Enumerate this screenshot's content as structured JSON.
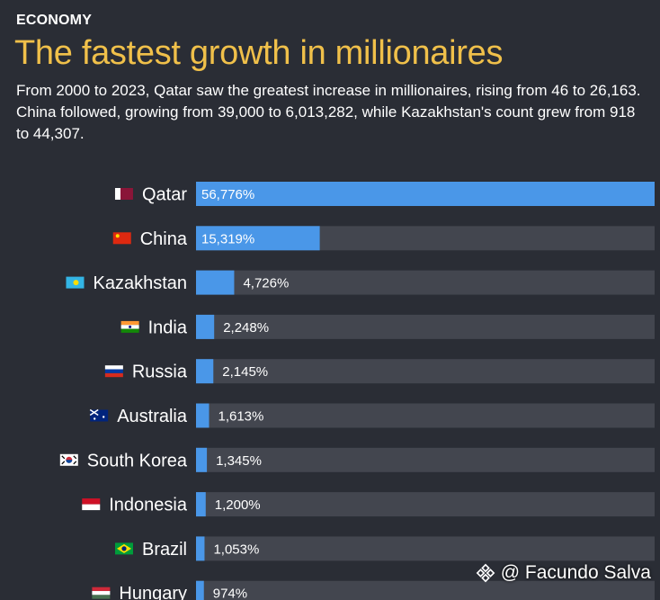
{
  "header": {
    "section": "ECONOMY",
    "title": "The fastest growth in millionaires",
    "subtitle": "From 2000 to 2023, Qatar saw the greatest increase in millionaires, rising from 46 to 26,163. China followed, growing from 39,000 to 6,013,282, while Kazakhstan's count grew from 918 to 44,307."
  },
  "chart_data": {
    "type": "bar",
    "orientation": "horizontal",
    "categories": [
      "Qatar",
      "China",
      "Kazakhstan",
      "India",
      "Russia",
      "Australia",
      "South Korea",
      "Indonesia",
      "Brazil",
      "Hungary"
    ],
    "values": [
      56776,
      15319,
      4726,
      2248,
      2145,
      1613,
      1345,
      1200,
      1053,
      974
    ],
    "labels": [
      "56,776%",
      "15,319%",
      "4,726%",
      "2,248%",
      "2,145%",
      "1,613%",
      "1,345%",
      "1,200%",
      "1,053%",
      "974%"
    ],
    "xlim": [
      0,
      56776
    ],
    "bar_color": "#4a97e8",
    "track_color": "#43464f",
    "flag_icons": [
      "qatar-flag-icon",
      "china-flag-icon",
      "kazakhstan-flag-icon",
      "india-flag-icon",
      "russia-flag-icon",
      "australia-flag-icon",
      "south-korea-flag-icon",
      "indonesia-flag-icon",
      "brazil-flag-icon",
      "hungary-flag-icon"
    ]
  },
  "watermark": {
    "text": "@ Facundo Salva",
    "icon": "binance-logo-icon"
  }
}
